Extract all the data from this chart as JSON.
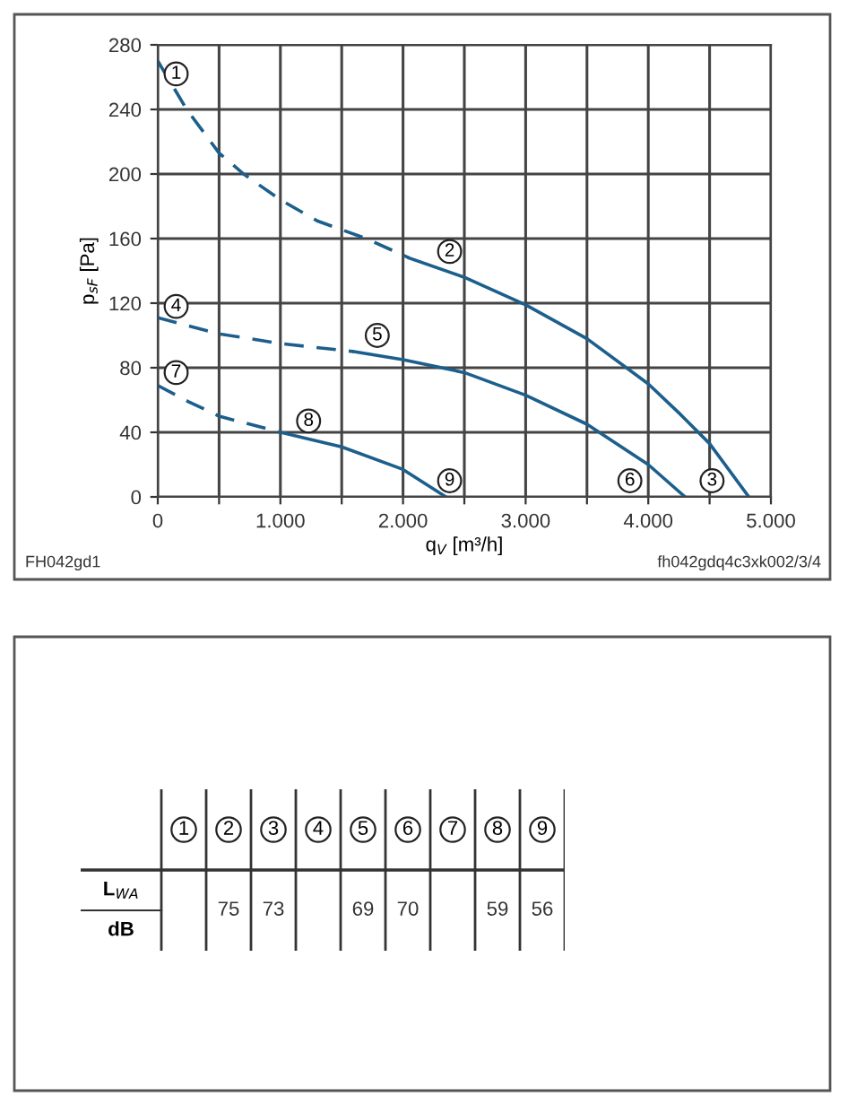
{
  "chart_data": [
    {
      "type": "line",
      "xlabel": "q$_{V}$ [m³/h]",
      "ylabel": "p$_{sF}$ [Pa]",
      "xlim": [
        0,
        5000
      ],
      "ylim": [
        0,
        280
      ],
      "xticks": [
        {
          "value": 0,
          "label": "0"
        },
        {
          "value": 500,
          "label": null
        },
        {
          "value": 1000,
          "label": "1.000"
        },
        {
          "value": 1500,
          "label": null
        },
        {
          "value": 2000,
          "label": "2.000"
        },
        {
          "value": 2500,
          "label": null
        },
        {
          "value": 3000,
          "label": "3.000"
        },
        {
          "value": 3500,
          "label": null
        },
        {
          "value": 4000,
          "label": "4.000"
        },
        {
          "value": 4500,
          "label": null
        },
        {
          "value": 5000,
          "label": "5.000"
        }
      ],
      "yticks": [
        0,
        40,
        80,
        120,
        160,
        200,
        240,
        280
      ],
      "grid": true,
      "marker": "none",
      "series": [
        {
          "color": "#1d5f8c",
          "line_style": "dashed",
          "x": [
            0,
            236,
            500,
            700,
            1000,
            1300,
            1700,
            2050
          ],
          "values": [
            270,
            240,
            213,
            200,
            184,
            171,
            160,
            148
          ]
        },
        {
          "color": "#1d5f8c",
          "line_style": "solid",
          "x": [
            2050,
            2500,
            3000,
            3500,
            4000,
            4250,
            4500,
            4820
          ],
          "values": [
            148,
            136,
            119,
            98,
            70,
            52,
            33,
            0
          ]
        },
        {
          "color": "#1d5f8c",
          "line_style": "dashed",
          "x": [
            0,
            500,
            1000,
            1600
          ],
          "values": [
            111,
            101,
            95,
            90
          ]
        },
        {
          "color": "#1d5f8c",
          "line_style": "solid",
          "x": [
            1600,
            2000,
            2500,
            3000,
            3500,
            4000,
            4300
          ],
          "values": [
            90,
            85,
            77,
            63,
            45,
            20,
            0
          ]
        },
        {
          "color": "#1d5f8c",
          "line_style": "dashed",
          "x": [
            0,
            250,
            500,
            1000
          ],
          "values": [
            69,
            59,
            50,
            40
          ]
        },
        {
          "color": "#1d5f8c",
          "line_style": "solid",
          "x": [
            1000,
            1500,
            2000,
            2350
          ],
          "values": [
            40,
            31,
            17,
            0
          ]
        }
      ],
      "annotations": [
        {
          "text": "1",
          "x": 150,
          "y": 262
        },
        {
          "text": "2",
          "x": 2380,
          "y": 152
        },
        {
          "text": "3",
          "x": 4520,
          "y": 10
        },
        {
          "text": "4",
          "x": 150,
          "y": 118
        },
        {
          "text": "5",
          "x": 1790,
          "y": 100
        },
        {
          "text": "6",
          "x": 3850,
          "y": 10
        },
        {
          "text": "7",
          "x": 150,
          "y": 77
        },
        {
          "text": "8",
          "x": 1230,
          "y": 47
        },
        {
          "text": "9",
          "x": 2380,
          "y": 10
        },
        "FH042gd1",
        "fh042gdq4c3xk002/3/4"
      ]
    },
    {
      "type": "heatmap",
      "categories": [
        "1",
        "2",
        "3",
        "4",
        "5",
        "6",
        "7",
        "8",
        "9"
      ],
      "y_categories": [
        "L$_{WA}$\ndB"
      ],
      "cells": [
        [
          null,
          75,
          73,
          null,
          69,
          70,
          null,
          59,
          56
        ]
      ],
      "data_labels": true
    }
  ]
}
